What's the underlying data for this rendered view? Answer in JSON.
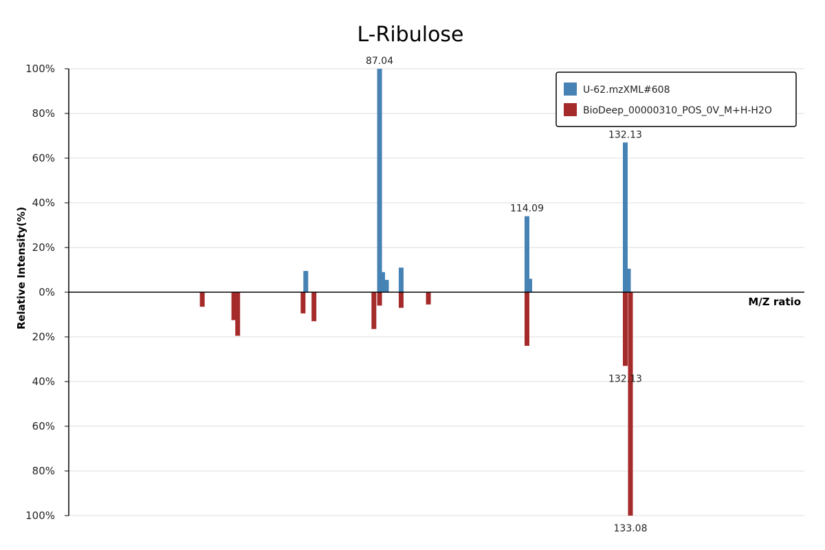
{
  "chart_data": {
    "type": "bar",
    "title": "L-Ribulose",
    "xlabel": "M/Z ratio",
    "ylabel": "Relative Intensity(%)",
    "ylim": [
      -100,
      100
    ],
    "xlim": [
      30,
      165
    ],
    "y_ticks": [
      "100%",
      "80%",
      "60%",
      "40%",
      "20%",
      "0%",
      "20%",
      "40%",
      "60%",
      "80%",
      "100%"
    ],
    "y_tick_values": [
      100,
      80,
      60,
      40,
      20,
      0,
      -20,
      -40,
      -60,
      -80,
      -100
    ],
    "grid": true,
    "legend_position": "top-right",
    "series": [
      {
        "name": "U-62.mzXML#608",
        "color": "#4682b4",
        "direction": "up",
        "points": [
          {
            "mz": 73.5,
            "intensity": 9.5
          },
          {
            "mz": 87.04,
            "intensity": 100,
            "label": "87.04"
          },
          {
            "mz": 87.6,
            "intensity": 9
          },
          {
            "mz": 88.3,
            "intensity": 5.5
          },
          {
            "mz": 91.0,
            "intensity": 11
          },
          {
            "mz": 114.09,
            "intensity": 34,
            "label": "114.09"
          },
          {
            "mz": 114.6,
            "intensity": 6
          },
          {
            "mz": 132.13,
            "intensity": 67,
            "label": "132.13"
          },
          {
            "mz": 132.7,
            "intensity": 10.5
          }
        ]
      },
      {
        "name": "BioDeep_00000310_POS_0V_M+H-H2O",
        "color": "#a52a2a",
        "direction": "down",
        "points": [
          {
            "mz": 54.5,
            "intensity": 6.5
          },
          {
            "mz": 60.3,
            "intensity": 12.5
          },
          {
            "mz": 61.0,
            "intensity": 19.5
          },
          {
            "mz": 73.0,
            "intensity": 9.5
          },
          {
            "mz": 75.0,
            "intensity": 13
          },
          {
            "mz": 86.0,
            "intensity": 16.5
          },
          {
            "mz": 87.04,
            "intensity": 6
          },
          {
            "mz": 91.0,
            "intensity": 7
          },
          {
            "mz": 96.0,
            "intensity": 5.5
          },
          {
            "mz": 114.09,
            "intensity": 24
          },
          {
            "mz": 132.13,
            "intensity": 33,
            "label": "132.13"
          },
          {
            "mz": 133.08,
            "intensity": 100,
            "label": "133.08"
          }
        ]
      }
    ]
  }
}
